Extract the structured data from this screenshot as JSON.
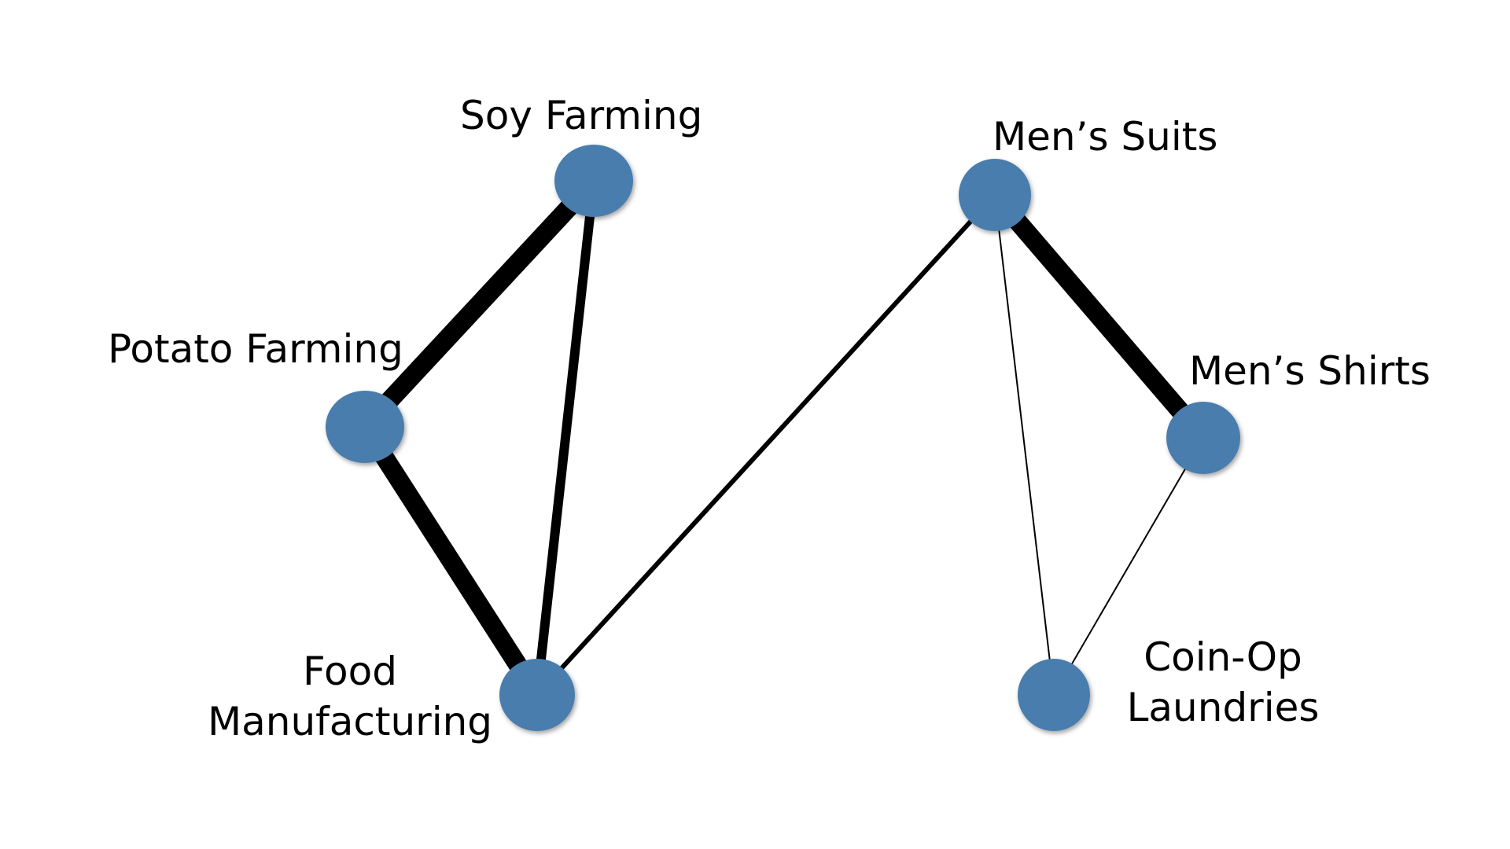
{
  "diagram": {
    "node_color": "#4a7dad",
    "edge_color": "#000000",
    "nodes": [
      {
        "id": "soy",
        "label_lines": [
          "Soy Farming"
        ]
      },
      {
        "id": "potato",
        "label_lines": [
          "Potato Farming"
        ]
      },
      {
        "id": "food",
        "label_lines": [
          "Food",
          "Manufacturing"
        ]
      },
      {
        "id": "suits",
        "label_lines": [
          "Men’s Suits"
        ]
      },
      {
        "id": "shirts",
        "label_lines": [
          "Men’s Shirts"
        ]
      },
      {
        "id": "laundry",
        "label_lines": [
          "Coin-Op",
          "Laundries"
        ]
      }
    ],
    "edges": [
      {
        "from": "soy",
        "to": "potato",
        "weight": "heavy"
      },
      {
        "from": "potato",
        "to": "food",
        "weight": "heavy"
      },
      {
        "from": "soy",
        "to": "food",
        "weight": "medium"
      },
      {
        "from": "food",
        "to": "suits",
        "weight": "light"
      },
      {
        "from": "suits",
        "to": "shirts",
        "weight": "heavy"
      },
      {
        "from": "suits",
        "to": "laundry",
        "weight": "thin"
      },
      {
        "from": "shirts",
        "to": "laundry",
        "weight": "thin"
      }
    ]
  }
}
